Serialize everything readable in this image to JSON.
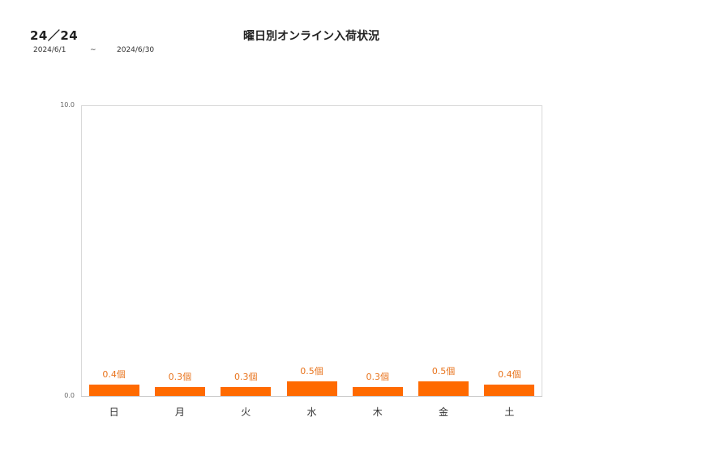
{
  "header": {
    "page": "24／24",
    "date_from": "2024/6/1",
    "date_sep": "~",
    "date_to": "2024/6/30"
  },
  "chart_data": {
    "type": "bar",
    "title": "曜日別オンライン入荷状況",
    "categories": [
      "日",
      "月",
      "火",
      "水",
      "木",
      "金",
      "土"
    ],
    "values": [
      0.4,
      0.3,
      0.3,
      0.5,
      0.3,
      0.5,
      0.4
    ],
    "data_labels": [
      "0.4個",
      "0.3個",
      "0.3個",
      "0.5個",
      "0.3個",
      "0.5個",
      "0.4個"
    ],
    "unit": "個",
    "xlabel": "",
    "ylabel": "",
    "ylim": [
      0,
      10
    ],
    "yticks": [
      "0.0",
      "10.0"
    ],
    "bar_color": "#ff6a00",
    "label_color": "#e8731c",
    "grid": false,
    "legend": null
  }
}
